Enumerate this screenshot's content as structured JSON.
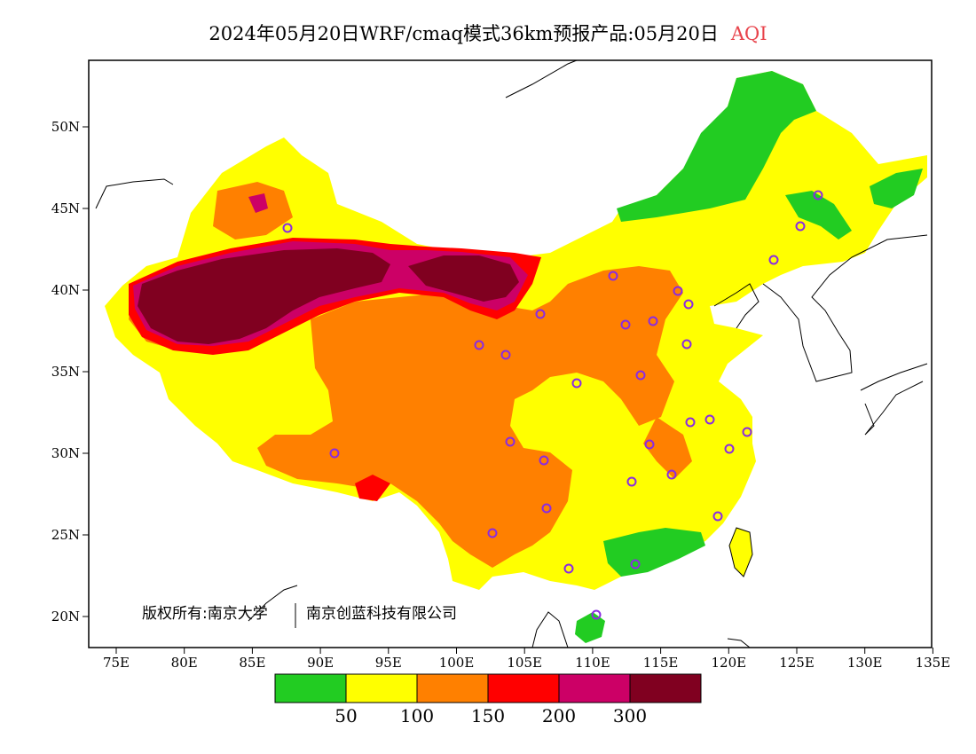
{
  "header": {
    "title": "2024年05月20日WRF/cmaq模式36km预报产品:05月20日",
    "variable": "AQI"
  },
  "axes": {
    "lon_ticks": [
      "75E",
      "80E",
      "85E",
      "90E",
      "95E",
      "100E",
      "105E",
      "110E",
      "115E",
      "120E",
      "125E",
      "130E",
      "135E"
    ],
    "lat_ticks": [
      "50N",
      "45N",
      "40N",
      "35N",
      "30N",
      "25N",
      "20N"
    ]
  },
  "copyright": {
    "owner": "版权所有:南京大学",
    "company": "南京创蓝科技有限公司"
  },
  "legend": {
    "colors": [
      "#22cc22",
      "#ffff00",
      "#ff8000",
      "#ff0000",
      "#cc0066",
      "#800020"
    ],
    "labels": [
      "50",
      "100",
      "150",
      "200",
      "300"
    ]
  },
  "colors": {
    "good": "#22cc22",
    "moderate": "#ffff00",
    "sensitive": "#ff8000",
    "unhealthy": "#ff0000",
    "very_unhealthy": "#cc0066",
    "hazardous": "#800020",
    "station_marker": "#8a2be2"
  }
}
